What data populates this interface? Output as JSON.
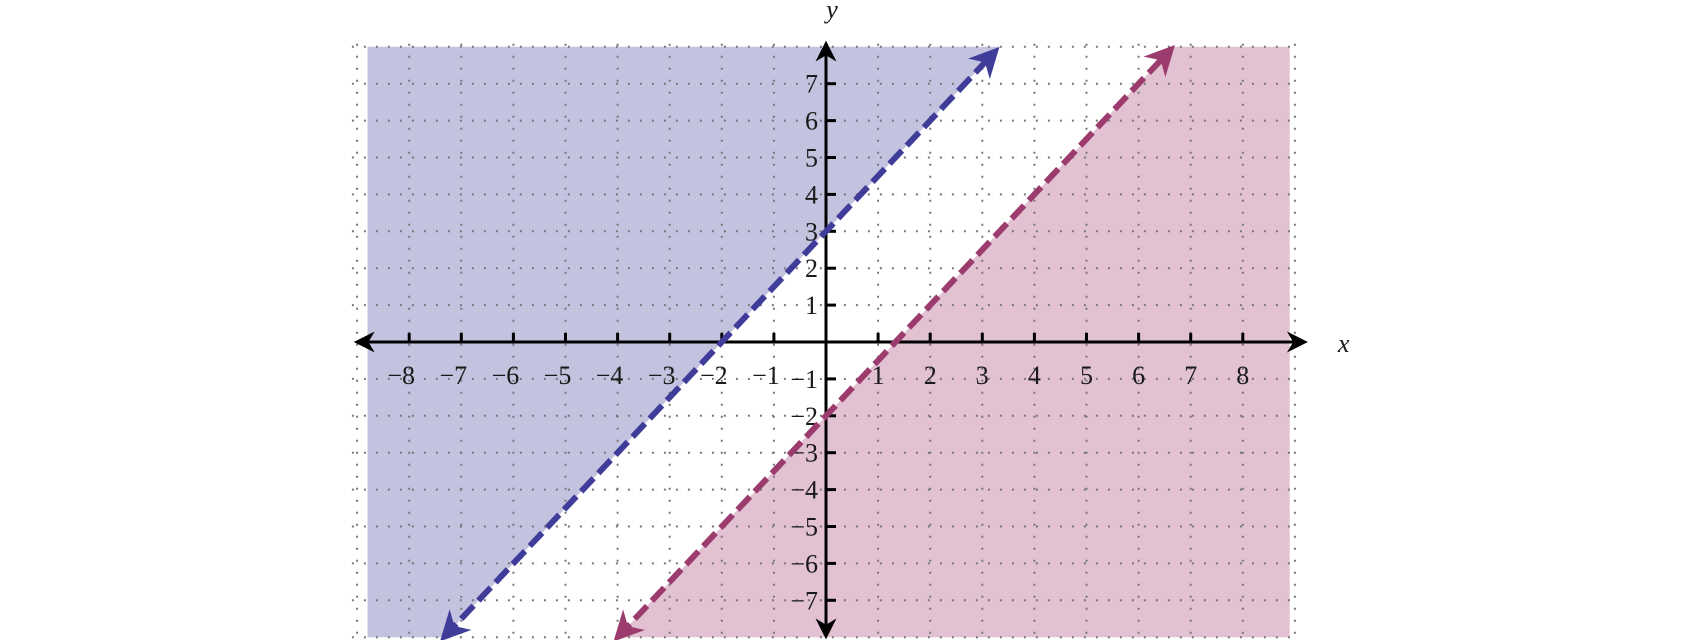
{
  "chart_data": {
    "type": "line",
    "title": "",
    "xlabel": "x",
    "ylabel": "y",
    "xlim": [
      -8.8,
      8.9
    ],
    "ylim": [
      -8,
      8
    ],
    "grid": true,
    "grid_style": "dotted",
    "x_ticks": [
      -8,
      -7,
      -6,
      -5,
      -4,
      -3,
      -2,
      -1,
      1,
      2,
      3,
      4,
      5,
      6,
      7,
      8
    ],
    "y_ticks": [
      -7,
      -6,
      -5,
      -4,
      -3,
      -2,
      -1,
      1,
      2,
      3,
      4,
      5,
      6,
      7
    ],
    "series": [
      {
        "slope": 1.5,
        "intercept": 3,
        "line_style": "dashed",
        "shaded_region": "above",
        "line_color": "#3f3d99",
        "fill_color": "#c3c3e0",
        "x_range": [
          -7.33,
          3.25
        ]
      },
      {
        "slope": 1.5,
        "intercept": -2,
        "line_style": "dashed",
        "shaded_region": "below",
        "line_color": "#9b3b6e",
        "fill_color": "#e2c1d2",
        "x_range": [
          -4,
          6.62
        ]
      }
    ]
  }
}
